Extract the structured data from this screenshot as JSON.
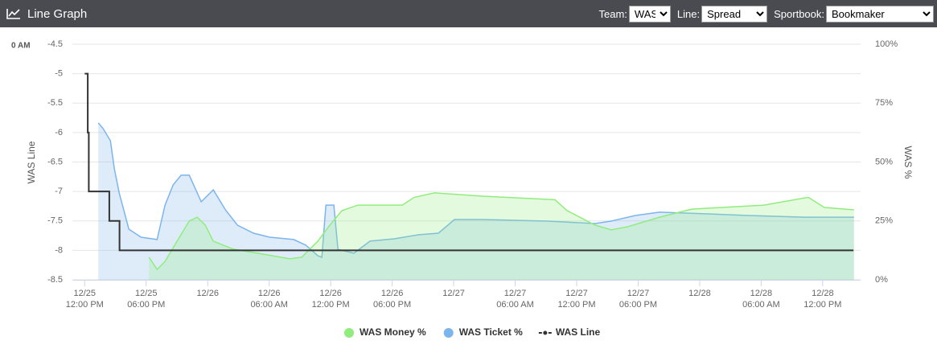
{
  "header": {
    "title": "Line Graph",
    "controls": [
      {
        "label": "Team:",
        "value": "WAS"
      },
      {
        "label": "Line:",
        "value": "Spread"
      },
      {
        "label": "Sportbook:",
        "value": "Bookmaker"
      }
    ]
  },
  "chart_data": {
    "type": "line",
    "annotation": "0 AM",
    "y_label": "WAS Line",
    "y2_label": "WAS %",
    "xlim": [
      10.8,
      87.7
    ],
    "xticks": [
      {
        "value": 12,
        "label": "12/25",
        "time": "12:00 PM"
      },
      {
        "value": 18,
        "label": "12/25",
        "time": "06:00 PM"
      },
      {
        "value": 24,
        "label": "12/26"
      },
      {
        "value": 30,
        "label": "12/26",
        "time": "06:00 AM"
      },
      {
        "value": 36,
        "label": "12/26",
        "time": "12:00 PM"
      },
      {
        "value": 42,
        "label": "12/26",
        "time": "06:00 PM"
      },
      {
        "value": 48,
        "label": "12/27"
      },
      {
        "value": 54,
        "label": "12/27",
        "time": "06:00 AM"
      },
      {
        "value": 60,
        "label": "12/27",
        "time": "12:00 PM"
      },
      {
        "value": 66,
        "label": "12/27",
        "time": "06:00 PM"
      },
      {
        "value": 72,
        "label": "12/28"
      },
      {
        "value": 78,
        "label": "12/28",
        "time": "06:00 AM"
      },
      {
        "value": 84,
        "label": "12/28",
        "time": "12:00 PM"
      }
    ],
    "ylim": [
      -8.5,
      -4.5
    ],
    "yticks": [
      -4.5,
      -5,
      -5.5,
      -6,
      -6.5,
      -7,
      -7.5,
      -8,
      -8.5
    ],
    "y2lim": [
      0,
      100
    ],
    "y2ticks": [
      {
        "value": 0,
        "label": "0%"
      },
      {
        "value": 25,
        "label": "25%"
      },
      {
        "value": 50,
        "label": "50%"
      },
      {
        "value": 75,
        "label": "75%"
      },
      {
        "value": 100,
        "label": "100%"
      }
    ],
    "grid": true,
    "series": [
      {
        "name": "WAS Ticket %",
        "color": "#7cb5ec",
        "axis": "y2",
        "area": true,
        "x": [
          13.33,
          13.8,
          14.51,
          14.9,
          15.37,
          16.31,
          17.49,
          19.06,
          19.84,
          20.63,
          21.41,
          22.2,
          23.37,
          24.55,
          25.73,
          26.9,
          28.47,
          30.04,
          32.39,
          33.57,
          34.75,
          35.14,
          35.53,
          36.31,
          36.71,
          38.27,
          39.84,
          42.2,
          44.55,
          46.51,
          48.08,
          50.82,
          57.1,
          61.8,
          63.37,
          65.73,
          68.08,
          72.78,
          76.71,
          82.2,
          87.06
        ],
        "values": [
          66.6,
          64.2,
          59.0,
          47.1,
          36.9,
          21.5,
          18.1,
          17.1,
          31.7,
          40.3,
          44.4,
          44.4,
          33.1,
          38.2,
          29.7,
          23.2,
          19.8,
          18.1,
          17.1,
          14.7,
          10.2,
          9.6,
          31.7,
          31.7,
          12.9,
          11.3,
          16.4,
          17.4,
          19.1,
          19.8,
          25.6,
          25.6,
          24.9,
          23.9,
          24.9,
          27.3,
          28.7,
          28.0,
          27.3,
          26.6,
          26.6
        ]
      },
      {
        "name": "WAS Money %",
        "color": "#90ed7d",
        "axis": "y2",
        "area": true,
        "x": [
          18.27,
          19.06,
          19.84,
          21.02,
          22.2,
          22.98,
          23.76,
          24.55,
          26.51,
          28.86,
          32.0,
          33.18,
          34.75,
          35.92,
          37.1,
          38.67,
          42.98,
          44.16,
          46.12,
          50.82,
          57.88,
          59.06,
          61.8,
          63.37,
          64.94,
          68.08,
          71.22,
          78.27,
          82.59,
          84.16,
          87.06
        ],
        "values": [
          9.6,
          4.4,
          7.8,
          16.4,
          25.0,
          26.6,
          23.2,
          16.4,
          13.0,
          11.3,
          8.9,
          9.6,
          16.4,
          23.2,
          29.4,
          31.7,
          31.7,
          35.0,
          36.9,
          35.5,
          34.0,
          29.4,
          23.2,
          21.2,
          22.5,
          26.6,
          30.0,
          31.7,
          35.0,
          30.7,
          29.7
        ]
      },
      {
        "name": "WAS Line",
        "color": "#333333",
        "axis": "y",
        "area": false,
        "x": [
          12,
          12.3,
          12.3,
          12.4,
          12.4,
          14.4,
          14.4,
          15.4,
          15.4,
          87
        ],
        "values": [
          -5,
          -5,
          -6,
          -6,
          -7,
          -7,
          -7.5,
          -7.5,
          -8,
          -8
        ]
      }
    ],
    "legend_order": [
      1,
      0,
      2
    ]
  }
}
